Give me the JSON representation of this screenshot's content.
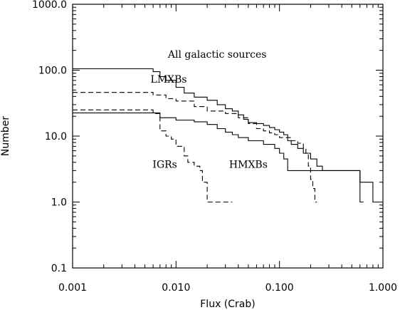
{
  "chart_data": {
    "type": "line",
    "xlabel": "Flux (Crab)",
    "ylabel": "Number",
    "xscale": "log",
    "yscale": "log",
    "xlim": [
      0.001,
      1.0
    ],
    "ylim": [
      0.1,
      1000.0
    ],
    "grid": false,
    "x_ticks": [
      "0.001",
      "0.010",
      "0.100",
      "1.000"
    ],
    "y_ticks": [
      "0.1",
      "1.0",
      "10.0",
      "100.0",
      "1000.0"
    ],
    "series": [
      {
        "name": "All galactic sources",
        "style": "solid",
        "points": [
          [
            0.001,
            105
          ],
          [
            0.005,
            105
          ],
          [
            0.006,
            95
          ],
          [
            0.007,
            80
          ],
          [
            0.008,
            70
          ],
          [
            0.01,
            55
          ],
          [
            0.012,
            45
          ],
          [
            0.015,
            39
          ],
          [
            0.02,
            35
          ],
          [
            0.025,
            30
          ],
          [
            0.03,
            26
          ],
          [
            0.035,
            24
          ],
          [
            0.04,
            21
          ],
          [
            0.045,
            18
          ],
          [
            0.05,
            16
          ],
          [
            0.06,
            15.5
          ],
          [
            0.07,
            14.5
          ],
          [
            0.08,
            13.5
          ],
          [
            0.09,
            12.5
          ],
          [
            0.1,
            11.5
          ],
          [
            0.11,
            10.5
          ],
          [
            0.12,
            8.5
          ],
          [
            0.13,
            7.5
          ],
          [
            0.15,
            6.5
          ],
          [
            0.17,
            5.5
          ],
          [
            0.2,
            4.5
          ],
          [
            0.23,
            3.5
          ],
          [
            0.26,
            3.0
          ],
          [
            0.6,
            2.0
          ],
          [
            0.8,
            1.0
          ],
          [
            1.0,
            1.0
          ]
        ]
      },
      {
        "name": "LMXBs",
        "style": "dashed",
        "points": [
          [
            0.001,
            46
          ],
          [
            0.005,
            46
          ],
          [
            0.006,
            42
          ],
          [
            0.008,
            37
          ],
          [
            0.01,
            34
          ],
          [
            0.015,
            28
          ],
          [
            0.02,
            24
          ],
          [
            0.03,
            22
          ],
          [
            0.04,
            19
          ],
          [
            0.05,
            15.5
          ],
          [
            0.06,
            13
          ],
          [
            0.07,
            12
          ],
          [
            0.08,
            11.2
          ],
          [
            0.09,
            10.5
          ],
          [
            0.1,
            9.5
          ],
          [
            0.13,
            8.5
          ],
          [
            0.15,
            7.8
          ],
          [
            0.17,
            6.5
          ],
          [
            0.18,
            5.3
          ],
          [
            0.19,
            3.5
          ],
          [
            0.2,
            2.2
          ],
          [
            0.21,
            1.6
          ],
          [
            0.22,
            1.0
          ],
          [
            0.23,
            1.0
          ]
        ]
      },
      {
        "name": "HMXBs",
        "style": "solid",
        "points": [
          [
            0.001,
            22.5
          ],
          [
            0.006,
            22.5
          ],
          [
            0.007,
            19
          ],
          [
            0.01,
            17.5
          ],
          [
            0.015,
            16.5
          ],
          [
            0.02,
            15
          ],
          [
            0.025,
            13
          ],
          [
            0.03,
            11.5
          ],
          [
            0.035,
            10.5
          ],
          [
            0.04,
            9.5
          ],
          [
            0.05,
            8.5
          ],
          [
            0.07,
            7.5
          ],
          [
            0.09,
            6.5
          ],
          [
            0.1,
            5.5
          ],
          [
            0.11,
            4.5
          ],
          [
            0.12,
            3.0
          ],
          [
            0.6,
            3.0
          ],
          [
            0.6,
            1.0
          ],
          [
            0.65,
            1.0
          ]
        ]
      },
      {
        "name": "IGRs",
        "style": "dashed",
        "points": [
          [
            0.001,
            25
          ],
          [
            0.005,
            25
          ],
          [
            0.006,
            22
          ],
          [
            0.007,
            12
          ],
          [
            0.008,
            10
          ],
          [
            0.009,
            9
          ],
          [
            0.01,
            7
          ],
          [
            0.012,
            5
          ],
          [
            0.013,
            4
          ],
          [
            0.015,
            3.5
          ],
          [
            0.017,
            3.0
          ],
          [
            0.018,
            2.0
          ],
          [
            0.02,
            1.0
          ],
          [
            0.035,
            1.0
          ]
        ]
      }
    ],
    "annotations": [
      {
        "text": "All galactic sources",
        "x": 0.025,
        "y": 155
      },
      {
        "text": "LMXBs",
        "x": 0.0085,
        "y": 65
      },
      {
        "text": "IGRs",
        "x": 0.0078,
        "y": 3.3
      },
      {
        "text": "HMXBs",
        "x": 0.05,
        "y": 3.3
      }
    ]
  }
}
